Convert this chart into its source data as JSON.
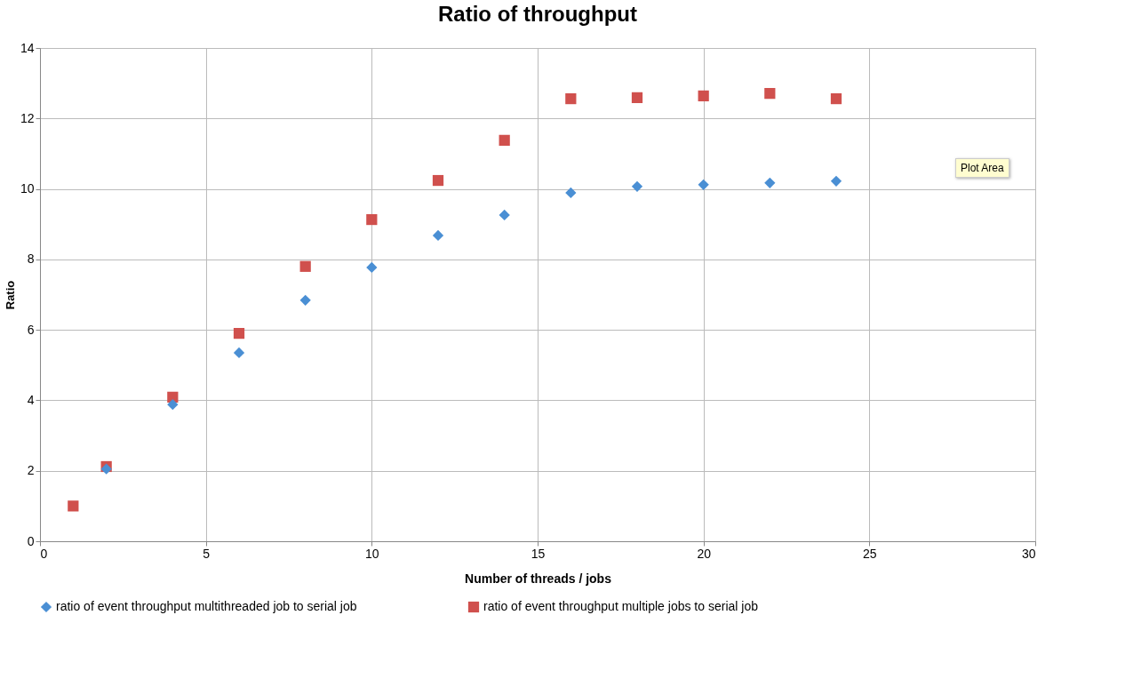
{
  "chart_data": {
    "type": "scatter",
    "title": "Ratio of throughput",
    "xlabel": "Number of threads / jobs",
    "ylabel": "Ratio",
    "xlim": [
      0,
      30
    ],
    "xticks": [
      0,
      5,
      10,
      15,
      20,
      25,
      30
    ],
    "ylim": [
      0,
      14
    ],
    "yticks": [
      0,
      2,
      4,
      6,
      8,
      10,
      12,
      14
    ],
    "grid": true,
    "legend": "bottom",
    "annotations": [
      "Plot Area"
    ],
    "series": [
      {
        "name": "ratio of event throughput multithreaded job to  serial job",
        "color": "#4a8fd4",
        "marker": "diamond",
        "x": [
          2,
          4,
          6,
          8,
          10,
          12,
          14,
          16,
          18,
          20,
          22,
          24
        ],
        "values": [
          2.05,
          3.88,
          5.35,
          6.84,
          7.77,
          8.68,
          9.26,
          9.89,
          10.07,
          10.12,
          10.17,
          10.22
        ]
      },
      {
        "name": "ratio of event throughput multiple jobs to serial job",
        "color": "#d0504d",
        "marker": "square",
        "x": [
          1,
          2,
          4,
          6,
          8,
          10,
          12,
          14,
          16,
          18,
          20,
          22,
          24
        ],
        "values": [
          1.0,
          2.12,
          4.09,
          5.9,
          7.8,
          9.13,
          10.24,
          11.38,
          12.56,
          12.59,
          12.64,
          12.71,
          12.56
        ]
      }
    ]
  }
}
